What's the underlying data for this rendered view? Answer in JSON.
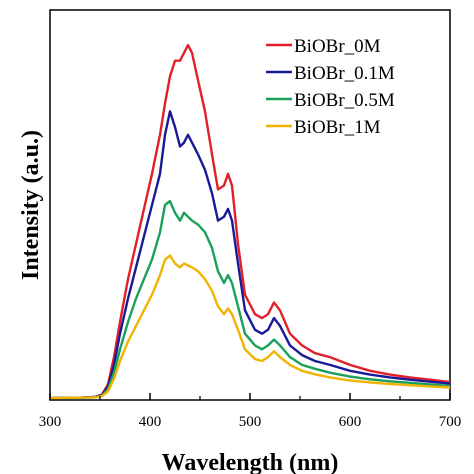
{
  "chart_data": {
    "type": "line",
    "xlabel": "Wavelength (nm)",
    "ylabel": "Intensity (a.u.)",
    "xlim": [
      300,
      700
    ],
    "xticks": [
      "300",
      "400",
      "500",
      "600",
      "700"
    ],
    "yticks_labeled": false,
    "grid": false,
    "legend_position": "top-right",
    "y_units": "arbitrary, 0 = baseline, 1 = panel top",
    "series": [
      {
        "name": "BiOBr_0M",
        "color": "#e0202a",
        "points": [
          [
            300,
            0.005
          ],
          [
            330,
            0.006
          ],
          [
            345,
            0.008
          ],
          [
            352,
            0.014
          ],
          [
            358,
            0.04
          ],
          [
            364,
            0.11
          ],
          [
            370,
            0.2
          ],
          [
            378,
            0.31
          ],
          [
            386,
            0.4
          ],
          [
            394,
            0.49
          ],
          [
            402,
            0.58
          ],
          [
            410,
            0.68
          ],
          [
            415,
            0.76
          ],
          [
            420,
            0.83
          ],
          [
            425,
            0.87
          ],
          [
            430,
            0.87
          ],
          [
            434,
            0.89
          ],
          [
            438,
            0.91
          ],
          [
            442,
            0.89
          ],
          [
            448,
            0.82
          ],
          [
            455,
            0.74
          ],
          [
            462,
            0.63
          ],
          [
            468,
            0.54
          ],
          [
            474,
            0.55
          ],
          [
            478,
            0.58
          ],
          [
            482,
            0.55
          ],
          [
            488,
            0.4
          ],
          [
            495,
            0.27
          ],
          [
            505,
            0.22
          ],
          [
            512,
            0.21
          ],
          [
            518,
            0.22
          ],
          [
            524,
            0.25
          ],
          [
            530,
            0.23
          ],
          [
            540,
            0.17
          ],
          [
            552,
            0.14
          ],
          [
            565,
            0.12
          ],
          [
            580,
            0.11
          ],
          [
            600,
            0.09
          ],
          [
            620,
            0.075
          ],
          [
            640,
            0.065
          ],
          [
            660,
            0.058
          ],
          [
            680,
            0.052
          ],
          [
            700,
            0.046
          ]
        ]
      },
      {
        "name": "BiOBr_0.1M",
        "color": "#1a1a99",
        "points": [
          [
            300,
            0.005
          ],
          [
            330,
            0.006
          ],
          [
            345,
            0.008
          ],
          [
            352,
            0.013
          ],
          [
            358,
            0.035
          ],
          [
            364,
            0.09
          ],
          [
            370,
            0.17
          ],
          [
            378,
            0.26
          ],
          [
            386,
            0.34
          ],
          [
            394,
            0.42
          ],
          [
            402,
            0.5
          ],
          [
            410,
            0.58
          ],
          [
            415,
            0.68
          ],
          [
            420,
            0.74
          ],
          [
            425,
            0.7
          ],
          [
            430,
            0.65
          ],
          [
            434,
            0.66
          ],
          [
            438,
            0.68
          ],
          [
            442,
            0.66
          ],
          [
            448,
            0.63
          ],
          [
            455,
            0.59
          ],
          [
            462,
            0.53
          ],
          [
            468,
            0.46
          ],
          [
            474,
            0.47
          ],
          [
            478,
            0.49
          ],
          [
            482,
            0.46
          ],
          [
            488,
            0.35
          ],
          [
            495,
            0.23
          ],
          [
            505,
            0.18
          ],
          [
            512,
            0.17
          ],
          [
            518,
            0.18
          ],
          [
            524,
            0.21
          ],
          [
            530,
            0.19
          ],
          [
            540,
            0.14
          ],
          [
            552,
            0.115
          ],
          [
            565,
            0.1
          ],
          [
            580,
            0.09
          ],
          [
            600,
            0.075
          ],
          [
            620,
            0.065
          ],
          [
            640,
            0.058
          ],
          [
            660,
            0.052
          ],
          [
            680,
            0.047
          ],
          [
            700,
            0.042
          ]
        ]
      },
      {
        "name": "BiOBr_0.5M",
        "color": "#1aa05a",
        "points": [
          [
            300,
            0.005
          ],
          [
            330,
            0.006
          ],
          [
            345,
            0.007
          ],
          [
            352,
            0.011
          ],
          [
            358,
            0.028
          ],
          [
            364,
            0.07
          ],
          [
            370,
            0.13
          ],
          [
            378,
            0.2
          ],
          [
            386,
            0.26
          ],
          [
            394,
            0.31
          ],
          [
            402,
            0.36
          ],
          [
            410,
            0.43
          ],
          [
            415,
            0.5
          ],
          [
            420,
            0.51
          ],
          [
            425,
            0.48
          ],
          [
            430,
            0.46
          ],
          [
            434,
            0.48
          ],
          [
            438,
            0.47
          ],
          [
            442,
            0.46
          ],
          [
            448,
            0.45
          ],
          [
            455,
            0.43
          ],
          [
            462,
            0.39
          ],
          [
            468,
            0.33
          ],
          [
            474,
            0.3
          ],
          [
            478,
            0.32
          ],
          [
            482,
            0.3
          ],
          [
            488,
            0.24
          ],
          [
            495,
            0.17
          ],
          [
            505,
            0.14
          ],
          [
            512,
            0.13
          ],
          [
            518,
            0.14
          ],
          [
            524,
            0.155
          ],
          [
            530,
            0.14
          ],
          [
            540,
            0.11
          ],
          [
            552,
            0.09
          ],
          [
            565,
            0.08
          ],
          [
            580,
            0.07
          ],
          [
            600,
            0.06
          ],
          [
            620,
            0.053
          ],
          [
            640,
            0.048
          ],
          [
            660,
            0.044
          ],
          [
            680,
            0.04
          ],
          [
            700,
            0.036
          ]
        ]
      },
      {
        "name": "BiOBr_1M",
        "color": "#f0b400",
        "points": [
          [
            300,
            0.005
          ],
          [
            330,
            0.006
          ],
          [
            345,
            0.007
          ],
          [
            352,
            0.01
          ],
          [
            358,
            0.022
          ],
          [
            364,
            0.055
          ],
          [
            370,
            0.1
          ],
          [
            378,
            0.15
          ],
          [
            386,
            0.19
          ],
          [
            394,
            0.23
          ],
          [
            402,
            0.27
          ],
          [
            410,
            0.32
          ],
          [
            415,
            0.36
          ],
          [
            420,
            0.37
          ],
          [
            425,
            0.35
          ],
          [
            430,
            0.34
          ],
          [
            434,
            0.35
          ],
          [
            438,
            0.345
          ],
          [
            442,
            0.34
          ],
          [
            448,
            0.33
          ],
          [
            455,
            0.31
          ],
          [
            462,
            0.28
          ],
          [
            468,
            0.24
          ],
          [
            474,
            0.22
          ],
          [
            478,
            0.235
          ],
          [
            482,
            0.22
          ],
          [
            488,
            0.18
          ],
          [
            495,
            0.13
          ],
          [
            505,
            0.105
          ],
          [
            512,
            0.1
          ],
          [
            518,
            0.11
          ],
          [
            524,
            0.125
          ],
          [
            530,
            0.11
          ],
          [
            540,
            0.09
          ],
          [
            552,
            0.075
          ],
          [
            565,
            0.066
          ],
          [
            580,
            0.058
          ],
          [
            600,
            0.05
          ],
          [
            620,
            0.045
          ],
          [
            640,
            0.041
          ],
          [
            660,
            0.038
          ],
          [
            680,
            0.035
          ],
          [
            700,
            0.032
          ]
        ]
      }
    ]
  }
}
